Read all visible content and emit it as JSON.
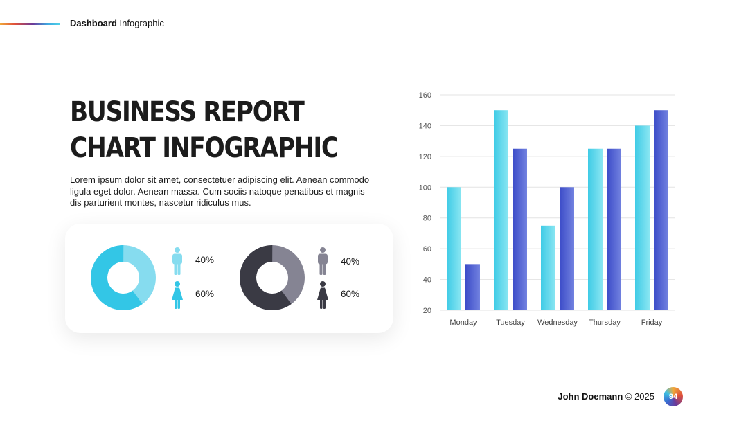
{
  "header": {
    "bold": "Dashboard",
    "rest": " Infographic"
  },
  "title": {
    "line1": "BUSINESS REPORT",
    "line2": "CHART INFOGRAPHIC"
  },
  "description": "Lorem ipsum dolor sit amet, consectetuer adipiscing elit. Aenean commodo ligula eget dolor. Aenean massa. Cum sociis natoque penatibus et magnis dis parturient montes, nascetur ridiculus mus.",
  "donuts": [
    {
      "male_pct": "40%",
      "female_pct": "60%",
      "colors": {
        "dark": "#33c6e6",
        "light": "#86dcef"
      }
    },
    {
      "male_pct": "40%",
      "female_pct": "60%",
      "colors": {
        "dark": "#3a3a44",
        "light": "#858493"
      }
    }
  ],
  "donut_values": [
    {
      "male": 40,
      "female": 60
    },
    {
      "male": 40,
      "female": 60
    }
  ],
  "footer": {
    "name": "John Doemann",
    "copyright": " © 2025",
    "page": "94"
  },
  "colors": {
    "series1": "#4dd4ea",
    "series2": "#4a5ad0",
    "gridline": "#e3e3e3"
  },
  "chart_data": {
    "type": "bar",
    "categories": [
      "Monday",
      "Tuesday",
      "Wednesday",
      "Thursday",
      "Friday"
    ],
    "series": [
      {
        "values": [
          100,
          150,
          75,
          125,
          140
        ]
      },
      {
        "values": [
          50,
          125,
          100,
          125,
          150
        ]
      }
    ],
    "ylim": [
      20,
      160
    ],
    "yticks": [
      20,
      40,
      60,
      80,
      100,
      120,
      140,
      160
    ],
    "grid": true,
    "legend": "none"
  }
}
